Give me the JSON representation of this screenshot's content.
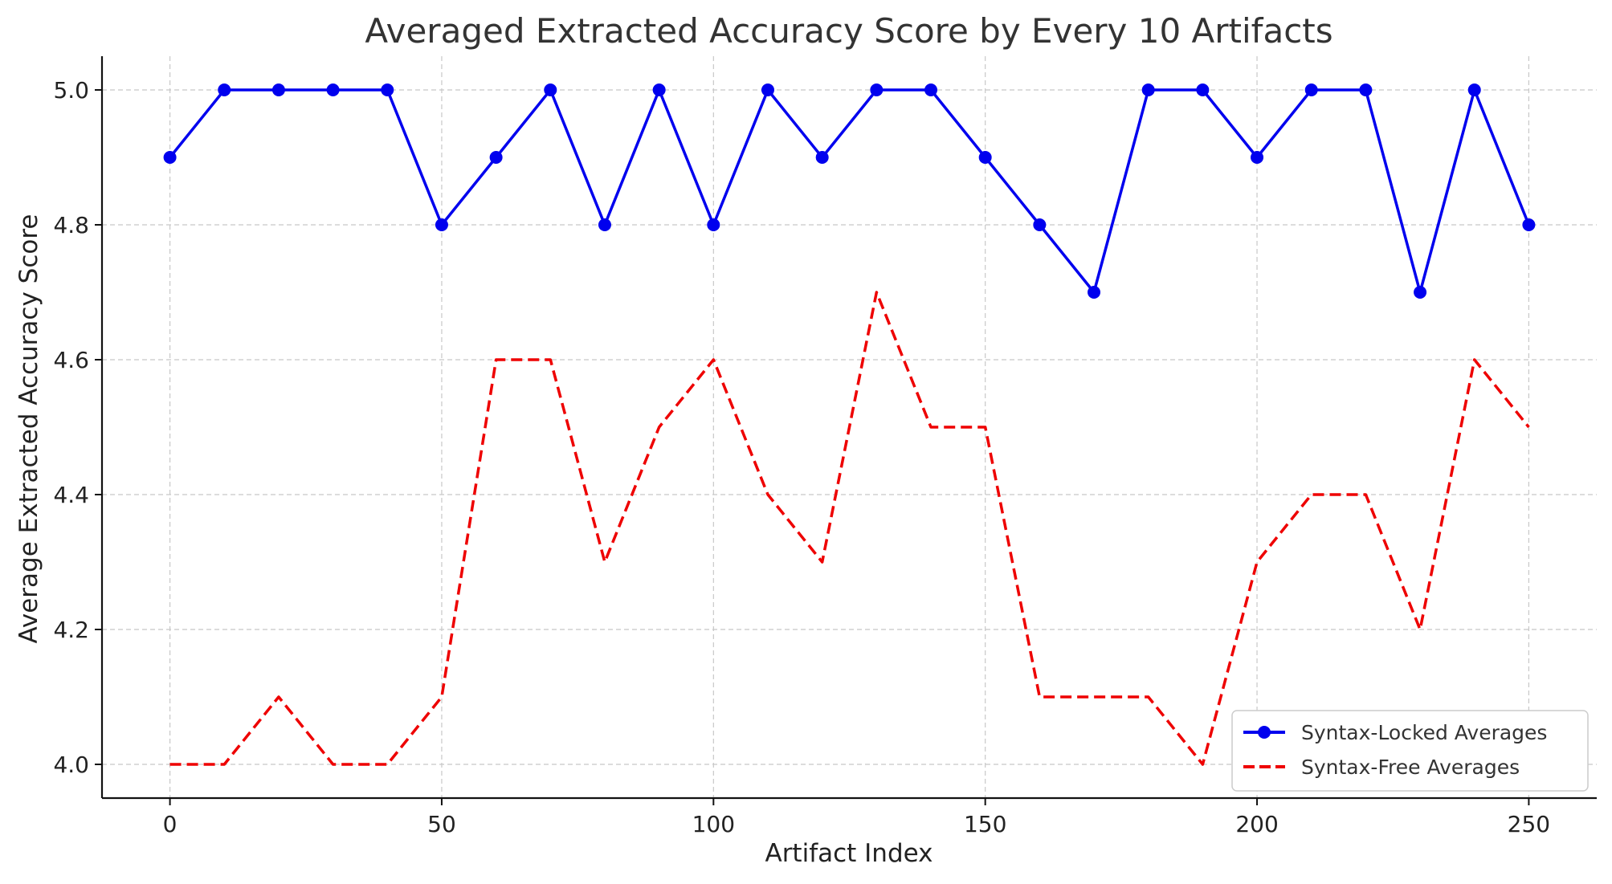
{
  "chart_data": {
    "type": "line",
    "title": "Averaged Extracted Accuracy Score by Every 10 Artifacts",
    "xlabel": "Artifact Index",
    "ylabel": "Average Extracted Accuracy Score",
    "x": [
      0,
      10,
      20,
      30,
      40,
      50,
      60,
      70,
      80,
      90,
      100,
      110,
      120,
      130,
      140,
      150,
      160,
      170,
      180,
      190,
      200,
      210,
      220,
      230,
      240,
      250
    ],
    "series": [
      {
        "name": "Syntax-Locked Averages",
        "color": "#0000ee",
        "line_style": "solid",
        "marker": "circle",
        "values": [
          4.9,
          5.0,
          5.0,
          5.0,
          5.0,
          4.8,
          4.9,
          5.0,
          4.8,
          5.0,
          4.8,
          5.0,
          4.9,
          5.0,
          5.0,
          4.9,
          4.8,
          4.7,
          5.0,
          5.0,
          4.9,
          5.0,
          5.0,
          4.7,
          5.0,
          4.8
        ]
      },
      {
        "name": "Syntax-Free Averages",
        "color": "#ee0000",
        "line_style": "dashed",
        "marker": "none",
        "values": [
          4.0,
          4.0,
          4.1,
          4.0,
          4.0,
          4.1,
          4.6,
          4.6,
          4.3,
          4.5,
          4.6,
          4.4,
          4.3,
          4.7,
          4.5,
          4.5,
          4.1,
          4.1,
          4.1,
          4.0,
          4.3,
          4.4,
          4.4,
          4.2,
          4.6,
          4.5
        ]
      }
    ],
    "xlim": [
      -12.5,
      262.5
    ],
    "ylim": [
      3.95,
      5.05
    ],
    "xticks": [
      "0",
      "50",
      "100",
      "150",
      "200",
      "250"
    ],
    "yticks": [
      "4.0",
      "4.2",
      "4.4",
      "4.6",
      "4.8",
      "5.0"
    ],
    "grid": true,
    "legend_position": "lower-right"
  }
}
